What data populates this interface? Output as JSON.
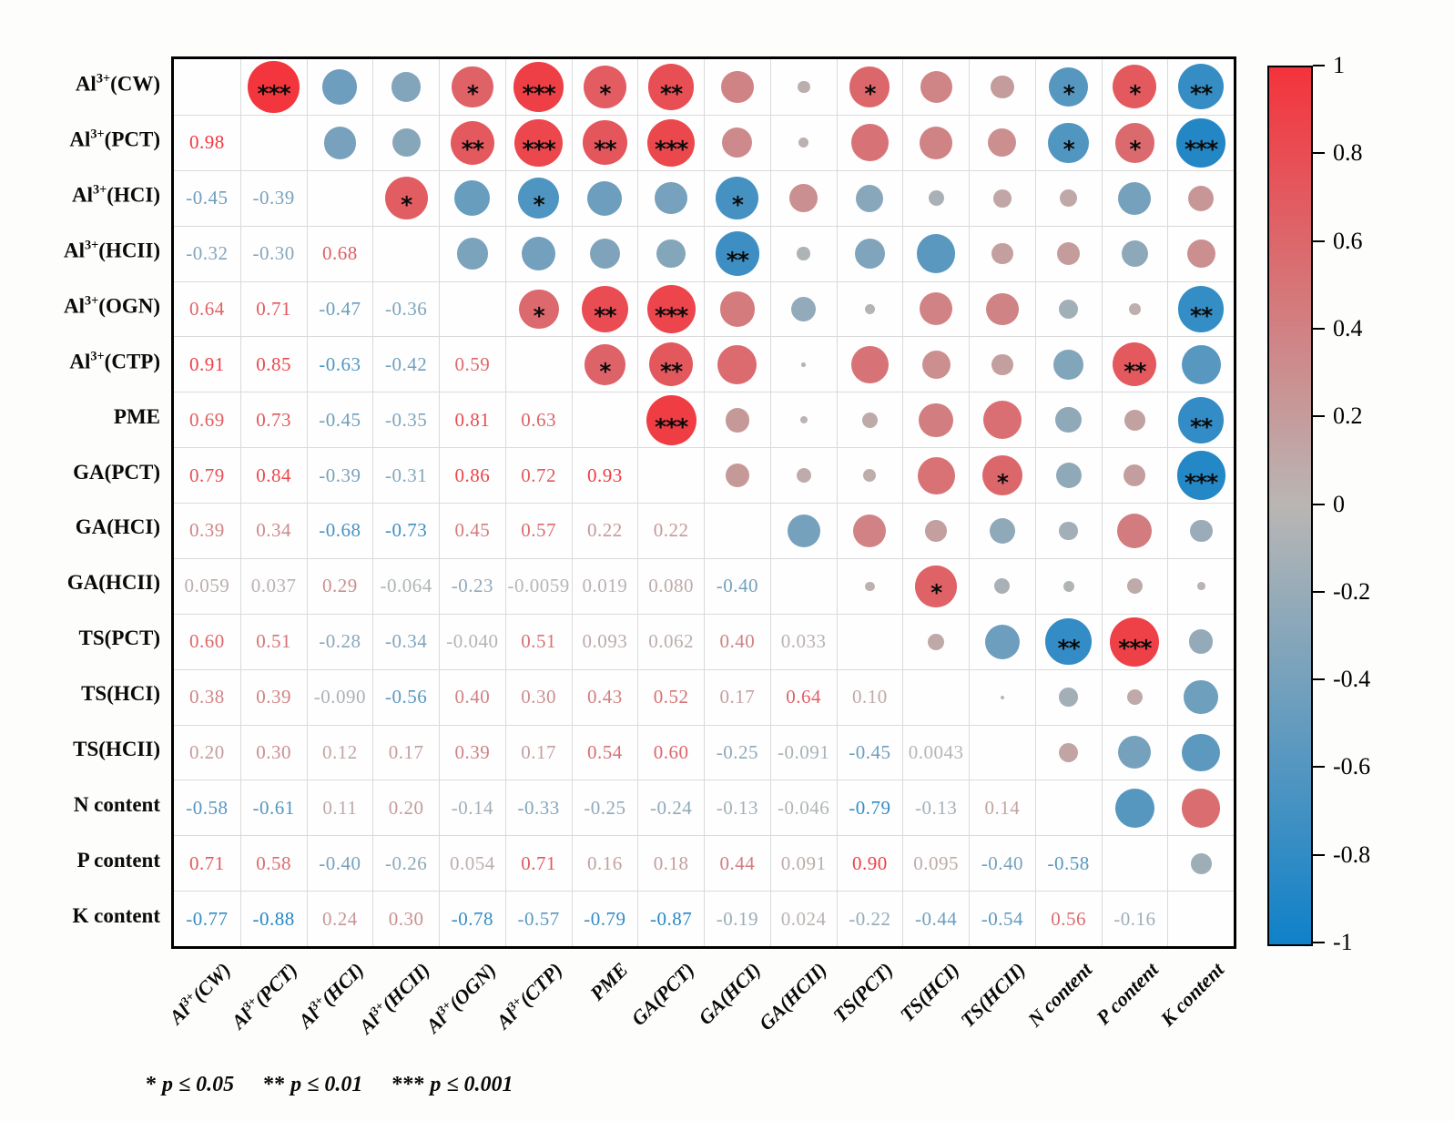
{
  "chart_data": {
    "type": "heatmap",
    "subtype": "correlation-matrix",
    "title": "",
    "legend_position": "right",
    "grid": true,
    "variables": [
      {
        "pre": "Al",
        "sup": "3+",
        "post": "(CW)"
      },
      {
        "pre": "Al",
        "sup": "3+",
        "post": "(PCT)"
      },
      {
        "pre": "Al",
        "sup": "3+",
        "post": "(HCI)"
      },
      {
        "pre": "Al",
        "sup": "3+",
        "post": "(HCII)"
      },
      {
        "pre": "Al",
        "sup": "3+",
        "post": "(OGN)"
      },
      {
        "pre": "Al",
        "sup": "3+",
        "post": "(CTP)"
      },
      {
        "pre": "PME",
        "sup": "",
        "post": ""
      },
      {
        "pre": "GA(PCT)",
        "sup": "",
        "post": ""
      },
      {
        "pre": "GA(HCI)",
        "sup": "",
        "post": ""
      },
      {
        "pre": "GA(HCII)",
        "sup": "",
        "post": ""
      },
      {
        "pre": "TS(PCT)",
        "sup": "",
        "post": ""
      },
      {
        "pre": "TS(HCI)",
        "sup": "",
        "post": ""
      },
      {
        "pre": "TS(HCII)",
        "sup": "",
        "post": ""
      },
      {
        "pre": "N content",
        "sup": "",
        "post": ""
      },
      {
        "pre": "P content",
        "sup": "",
        "post": ""
      },
      {
        "pre": "K content",
        "sup": "",
        "post": ""
      }
    ],
    "lower_triangle_values": [
      [],
      [
        "0.98"
      ],
      [
        "-0.45",
        "-0.39"
      ],
      [
        "-0.32",
        "-0.30",
        "0.68"
      ],
      [
        "0.64",
        "0.71",
        "-0.47",
        "-0.36"
      ],
      [
        "0.91",
        "0.85",
        "-0.63",
        "-0.42",
        "0.59"
      ],
      [
        "0.69",
        "0.73",
        "-0.45",
        "-0.35",
        "0.81",
        "0.63"
      ],
      [
        "0.79",
        "0.84",
        "-0.39",
        "-0.31",
        "0.86",
        "0.72",
        "0.93"
      ],
      [
        "0.39",
        "0.34",
        "-0.68",
        "-0.73",
        "0.45",
        "0.57",
        "0.22",
        "0.22"
      ],
      [
        "0.059",
        "0.037",
        "0.29",
        "-0.064",
        "-0.23",
        "-0.0059",
        "0.019",
        "0.080",
        "-0.40"
      ],
      [
        "0.60",
        "0.51",
        "-0.28",
        "-0.34",
        "-0.040",
        "0.51",
        "0.093",
        "0.062",
        "0.40",
        "0.033"
      ],
      [
        "0.38",
        "0.39",
        "-0.090",
        "-0.56",
        "0.40",
        "0.30",
        "0.43",
        "0.52",
        "0.17",
        "0.64",
        "0.10"
      ],
      [
        "0.20",
        "0.30",
        "0.12",
        "0.17",
        "0.39",
        "0.17",
        "0.54",
        "0.60",
        "-0.25",
        "-0.091",
        "-0.45",
        "0.0043"
      ],
      [
        "-0.58",
        "-0.61",
        "0.11",
        "0.20",
        "-0.14",
        "-0.33",
        "-0.25",
        "-0.24",
        "-0.13",
        "-0.046",
        "-0.79",
        "-0.13",
        "0.14"
      ],
      [
        "0.71",
        "0.58",
        "-0.40",
        "-0.26",
        "0.054",
        "0.71",
        "0.16",
        "0.18",
        "0.44",
        "0.091",
        "0.90",
        "0.095",
        "-0.40",
        "-0.58"
      ],
      [
        "-0.77",
        "-0.88",
        "0.24",
        "0.30",
        "-0.78",
        "-0.57",
        "-0.79",
        "-0.87",
        "-0.19",
        "0.024",
        "-0.22",
        "-0.44",
        "-0.54",
        "0.56",
        "-0.16"
      ]
    ],
    "significance": [
      {
        "row": 1,
        "col": 2,
        "stars": "***"
      },
      {
        "row": 1,
        "col": 5,
        "stars": "*"
      },
      {
        "row": 1,
        "col": 6,
        "stars": "***"
      },
      {
        "row": 1,
        "col": 7,
        "stars": "*"
      },
      {
        "row": 1,
        "col": 8,
        "stars": "**"
      },
      {
        "row": 1,
        "col": 11,
        "stars": "*"
      },
      {
        "row": 1,
        "col": 14,
        "stars": "*"
      },
      {
        "row": 1,
        "col": 15,
        "stars": "*"
      },
      {
        "row": 1,
        "col": 16,
        "stars": "**"
      },
      {
        "row": 2,
        "col": 5,
        "stars": "**"
      },
      {
        "row": 2,
        "col": 6,
        "stars": "***"
      },
      {
        "row": 2,
        "col": 7,
        "stars": "**"
      },
      {
        "row": 2,
        "col": 8,
        "stars": "***"
      },
      {
        "row": 2,
        "col": 14,
        "stars": "*"
      },
      {
        "row": 2,
        "col": 15,
        "stars": "*"
      },
      {
        "row": 2,
        "col": 16,
        "stars": "***"
      },
      {
        "row": 3,
        "col": 4,
        "stars": "*"
      },
      {
        "row": 3,
        "col": 6,
        "stars": "*"
      },
      {
        "row": 3,
        "col": 9,
        "stars": "*"
      },
      {
        "row": 4,
        "col": 9,
        "stars": "**"
      },
      {
        "row": 5,
        "col": 6,
        "stars": "*"
      },
      {
        "row": 5,
        "col": 7,
        "stars": "**"
      },
      {
        "row": 5,
        "col": 8,
        "stars": "***"
      },
      {
        "row": 5,
        "col": 16,
        "stars": "**"
      },
      {
        "row": 6,
        "col": 7,
        "stars": "*"
      },
      {
        "row": 6,
        "col": 8,
        "stars": "**"
      },
      {
        "row": 6,
        "col": 15,
        "stars": "**"
      },
      {
        "row": 7,
        "col": 8,
        "stars": "***"
      },
      {
        "row": 7,
        "col": 16,
        "stars": "**"
      },
      {
        "row": 8,
        "col": 13,
        "stars": "*"
      },
      {
        "row": 8,
        "col": 16,
        "stars": "***"
      },
      {
        "row": 10,
        "col": 12,
        "stars": "*"
      },
      {
        "row": 11,
        "col": 14,
        "stars": "**"
      },
      {
        "row": 11,
        "col": 15,
        "stars": "***"
      }
    ],
    "colormap": {
      "positive_max": "#f4333b",
      "neutral": "#b9b6b4",
      "negative_max": "#0f81c9"
    },
    "colorbar": {
      "min": -1,
      "max": 1,
      "ticks": [
        {
          "label": "1",
          "value": 1
        },
        {
          "label": "0.8",
          "value": 0.8
        },
        {
          "label": "0.6",
          "value": 0.6
        },
        {
          "label": "0.4",
          "value": 0.4
        },
        {
          "label": "0.2",
          "value": 0.2
        },
        {
          "label": "0",
          "value": 0
        },
        {
          "label": "-0.2",
          "value": -0.2
        },
        {
          "label": "-0.4",
          "value": -0.4
        },
        {
          "label": "-0.6",
          "value": -0.6
        },
        {
          "label": "-0.8",
          "value": -0.8
        },
        {
          "label": "-1",
          "value": -1
        }
      ]
    },
    "footnote": [
      {
        "stars": "*",
        "cond": "p ≤ 0.05"
      },
      {
        "stars": "**",
        "cond": "p ≤ 0.01"
      },
      {
        "stars": "***",
        "cond": "p ≤ 0.001"
      }
    ]
  }
}
